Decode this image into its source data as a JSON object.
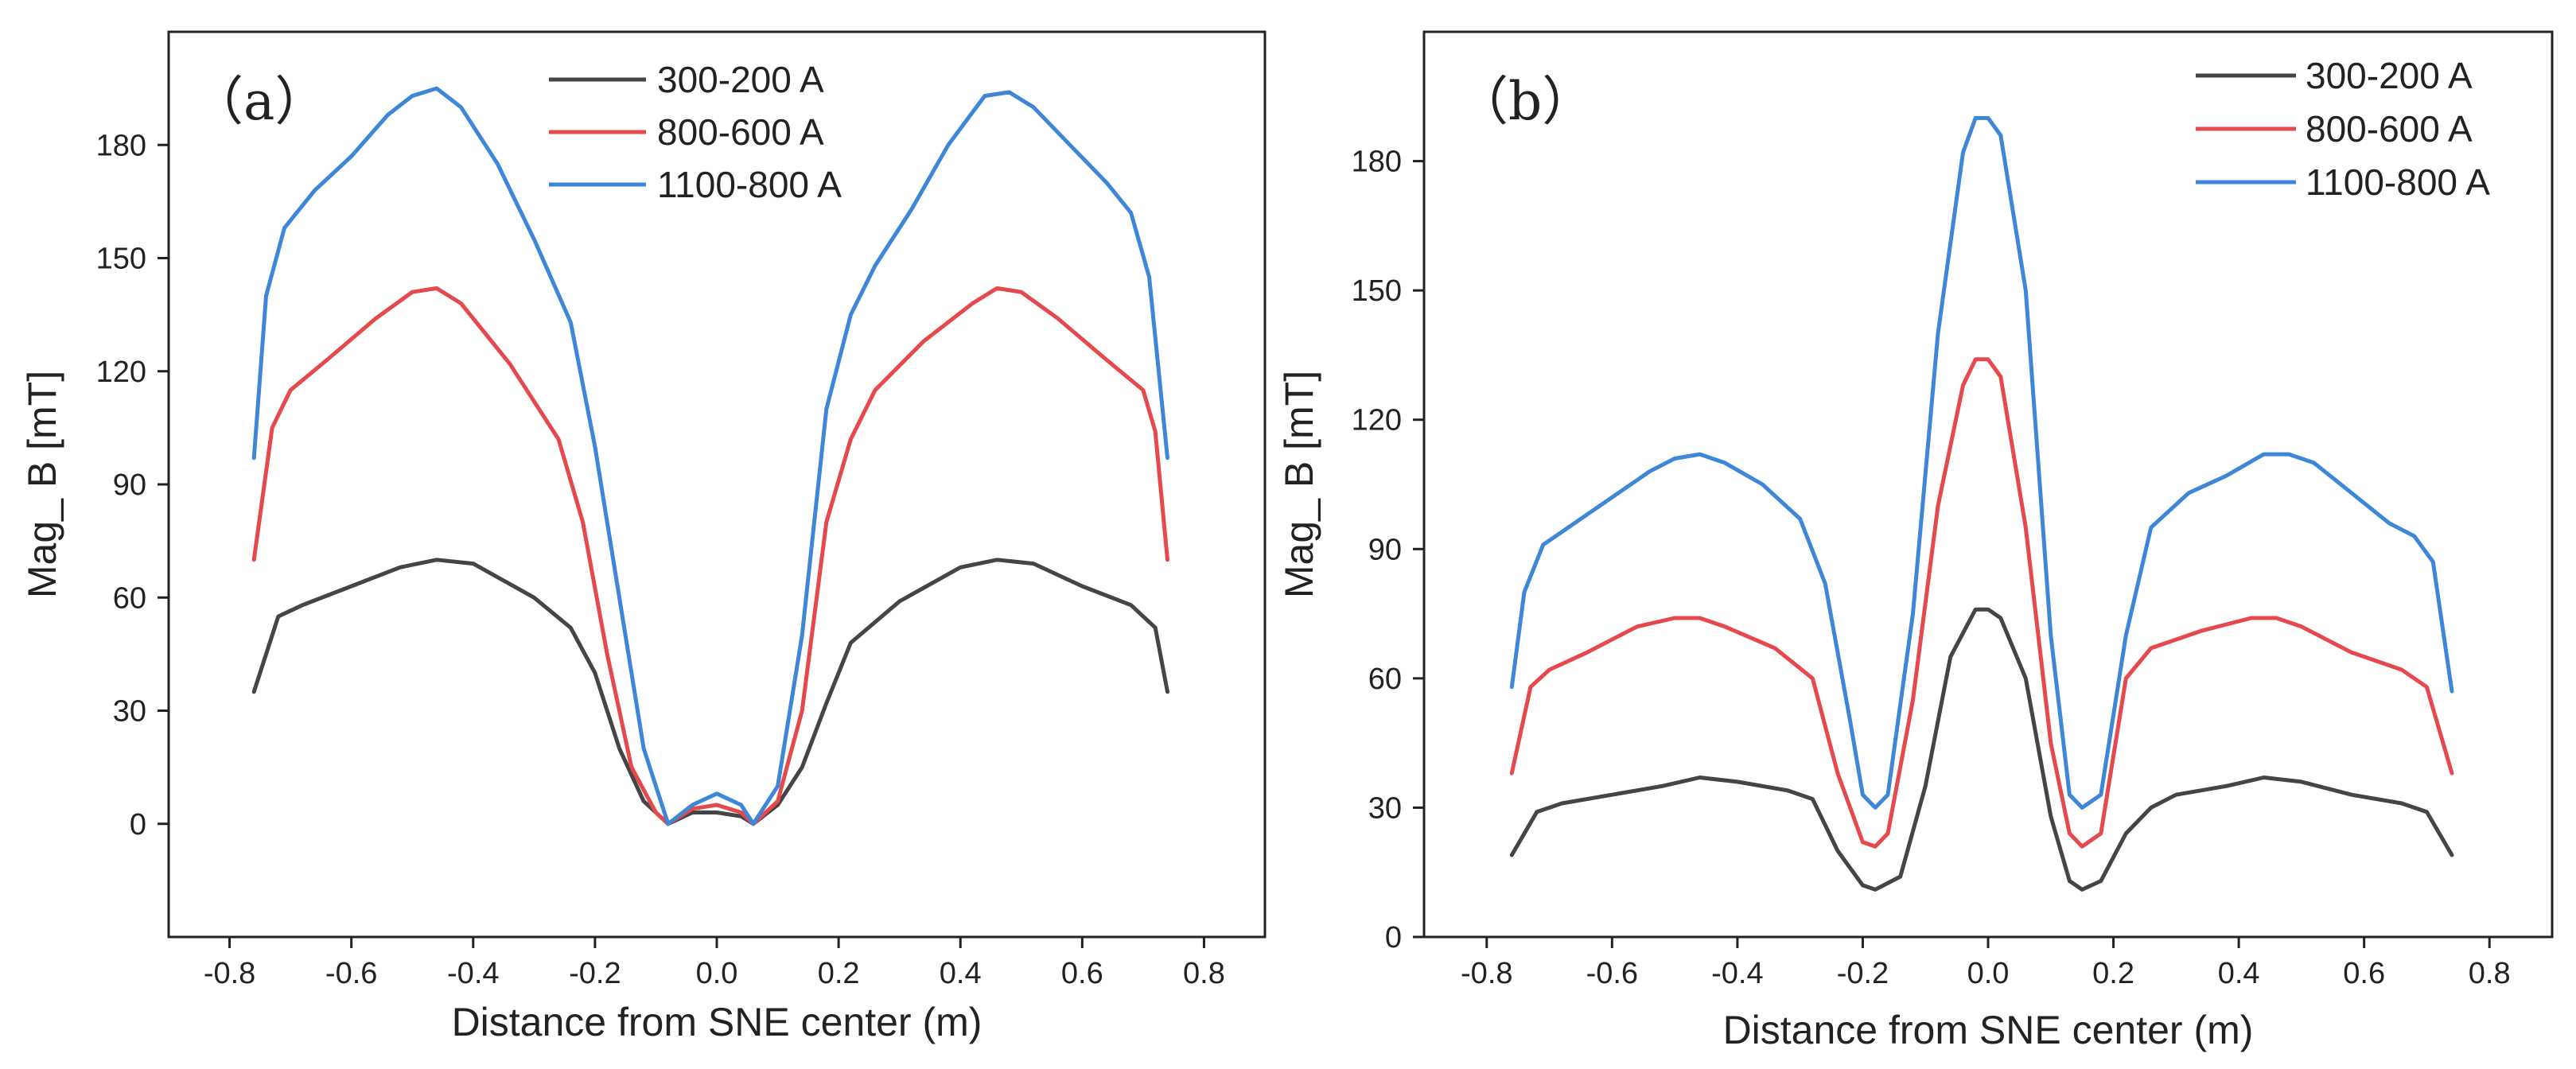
{
  "chart_data": [
    {
      "type": "line",
      "panel_label": "（a）",
      "xlabel": "Distance from SNE center (m)",
      "ylabel": "Mag_ B [mT]",
      "xlim": [
        -0.9,
        0.9
      ],
      "ylim": [
        -30,
        210
      ],
      "xticks": [
        -0.8,
        -0.6,
        -0.4,
        -0.2,
        0.0,
        0.2,
        0.4,
        0.6,
        0.8
      ],
      "xtick_labels": [
        "-0.8",
        "-0.6",
        "-0.4",
        "-0.2",
        "0.0",
        "0.2",
        "0.4",
        "0.6",
        "0.8"
      ],
      "yticks": [
        0,
        30,
        60,
        90,
        120,
        150,
        180
      ],
      "ytick_labels": [
        "0",
        "30",
        "60",
        "90",
        "120",
        "150",
        "180"
      ],
      "legend_position": "top-right",
      "series": [
        {
          "name": "300-200 A",
          "color": "#454545",
          "x": [
            -0.76,
            -0.72,
            -0.68,
            -0.6,
            -0.52,
            -0.46,
            -0.4,
            -0.3,
            -0.24,
            -0.2,
            -0.16,
            -0.12,
            -0.08,
            -0.04,
            0.0,
            0.04,
            0.06,
            0.1,
            0.14,
            0.18,
            0.22,
            0.3,
            0.4,
            0.46,
            0.52,
            0.6,
            0.68,
            0.72,
            0.74
          ],
          "y": [
            35,
            55,
            58,
            63,
            68,
            70,
            69,
            60,
            52,
            40,
            20,
            6,
            0,
            3,
            3,
            2,
            0,
            5,
            15,
            32,
            48,
            59,
            68,
            70,
            69,
            63,
            58,
            52,
            35
          ]
        },
        {
          "name": "800-600 A",
          "color": "#e5484d",
          "x": [
            -0.76,
            -0.73,
            -0.7,
            -0.64,
            -0.56,
            -0.5,
            -0.46,
            -0.42,
            -0.34,
            -0.26,
            -0.22,
            -0.18,
            -0.14,
            -0.1,
            -0.08,
            -0.04,
            0.0,
            0.04,
            0.06,
            0.1,
            0.14,
            0.18,
            0.22,
            0.26,
            0.34,
            0.42,
            0.46,
            0.5,
            0.56,
            0.64,
            0.7,
            0.72,
            0.74
          ],
          "y": [
            70,
            105,
            115,
            123,
            134,
            141,
            142,
            138,
            122,
            102,
            80,
            45,
            15,
            3,
            0,
            4,
            5,
            3,
            0,
            6,
            30,
            80,
            102,
            115,
            128,
            138,
            142,
            141,
            134,
            123,
            115,
            104,
            70
          ]
        },
        {
          "name": "1100-800 A",
          "color": "#3d86d8",
          "x": [
            -0.76,
            -0.74,
            -0.71,
            -0.66,
            -0.6,
            -0.54,
            -0.5,
            -0.46,
            -0.42,
            -0.36,
            -0.3,
            -0.24,
            -0.2,
            -0.16,
            -0.12,
            -0.08,
            -0.04,
            0.0,
            0.04,
            0.06,
            0.1,
            0.14,
            0.18,
            0.22,
            0.26,
            0.32,
            0.38,
            0.44,
            0.48,
            0.52,
            0.58,
            0.64,
            0.68,
            0.71,
            0.74
          ],
          "y": [
            97,
            140,
            158,
            168,
            177,
            188,
            193,
            195,
            190,
            175,
            155,
            133,
            100,
            60,
            20,
            0,
            5,
            8,
            5,
            0,
            10,
            50,
            110,
            135,
            148,
            163,
            180,
            193,
            194,
            190,
            180,
            170,
            162,
            145,
            97
          ]
        }
      ]
    },
    {
      "type": "line",
      "panel_label": "（b）",
      "xlabel": "Distance from SNE center (m)",
      "ylabel": "Mag_ B [mT]",
      "xlim": [
        -0.9,
        0.9
      ],
      "ylim": [
        0,
        210
      ],
      "xticks": [
        -0.8,
        -0.6,
        -0.4,
        -0.2,
        0.0,
        0.2,
        0.4,
        0.6,
        0.8
      ],
      "xtick_labels": [
        "-0.8",
        "-0.6",
        "-0.4",
        "-0.2",
        "0.0",
        "0.2",
        "0.4",
        "0.6",
        "0.8"
      ],
      "yticks": [
        0,
        30,
        60,
        90,
        120,
        150,
        180
      ],
      "ytick_labels": [
        "0",
        "30",
        "60",
        "90",
        "120",
        "150",
        "180"
      ],
      "legend_position": "top-right",
      "series": [
        {
          "name": "300-200 A",
          "color": "#454545",
          "x": [
            -0.76,
            -0.72,
            -0.68,
            -0.6,
            -0.52,
            -0.46,
            -0.4,
            -0.32,
            -0.28,
            -0.24,
            -0.2,
            -0.18,
            -0.14,
            -0.1,
            -0.06,
            -0.02,
            0.0,
            0.02,
            0.06,
            0.1,
            0.13,
            0.15,
            0.18,
            0.22,
            0.26,
            0.3,
            0.38,
            0.44,
            0.5,
            0.58,
            0.66,
            0.7,
            0.74
          ],
          "y": [
            19,
            29,
            31,
            33,
            35,
            37,
            36,
            34,
            32,
            20,
            12,
            11,
            14,
            35,
            65,
            76,
            76,
            74,
            60,
            28,
            13,
            11,
            13,
            24,
            30,
            33,
            35,
            37,
            36,
            33,
            31,
            29,
            19
          ]
        },
        {
          "name": "800-600 A",
          "color": "#e5484d",
          "x": [
            -0.76,
            -0.73,
            -0.7,
            -0.64,
            -0.56,
            -0.5,
            -0.46,
            -0.42,
            -0.34,
            -0.28,
            -0.24,
            -0.2,
            -0.18,
            -0.16,
            -0.12,
            -0.08,
            -0.04,
            -0.02,
            0.0,
            0.02,
            0.06,
            0.1,
            0.13,
            0.15,
            0.18,
            0.22,
            0.26,
            0.34,
            0.42,
            0.46,
            0.5,
            0.58,
            0.66,
            0.7,
            0.74
          ],
          "y": [
            38,
            58,
            62,
            66,
            72,
            74,
            74,
            72,
            67,
            60,
            38,
            22,
            21,
            24,
            55,
            100,
            128,
            134,
            134,
            130,
            95,
            45,
            24,
            21,
            24,
            60,
            67,
            71,
            74,
            74,
            72,
            66,
            62,
            58,
            38
          ]
        },
        {
          "name": "1100-800 A",
          "color": "#3d86d8",
          "x": [
            -0.76,
            -0.74,
            -0.71,
            -0.66,
            -0.6,
            -0.54,
            -0.5,
            -0.46,
            -0.42,
            -0.36,
            -0.3,
            -0.26,
            -0.22,
            -0.2,
            -0.18,
            -0.16,
            -0.12,
            -0.08,
            -0.04,
            -0.02,
            0.0,
            0.02,
            0.06,
            0.1,
            0.13,
            0.15,
            0.18,
            0.22,
            0.26,
            0.32,
            0.38,
            0.44,
            0.48,
            0.52,
            0.58,
            0.64,
            0.68,
            0.71,
            0.74
          ],
          "y": [
            58,
            80,
            91,
            96,
            102,
            108,
            111,
            112,
            110,
            105,
            97,
            82,
            50,
            33,
            30,
            33,
            75,
            140,
            182,
            190,
            190,
            186,
            150,
            70,
            33,
            30,
            33,
            70,
            95,
            103,
            107,
            112,
            112,
            110,
            103,
            96,
            93,
            87,
            57
          ]
        }
      ]
    }
  ]
}
